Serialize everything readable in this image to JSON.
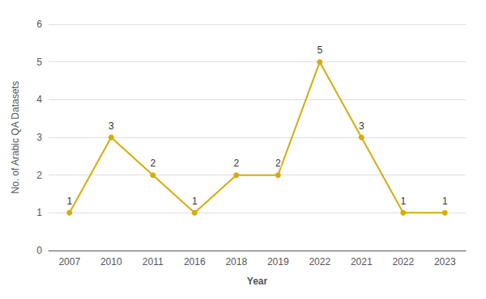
{
  "chart_data": {
    "type": "line",
    "xlabel": "Year",
    "ylabel": "No. of Arabic QA Datasets",
    "categories": [
      "2007",
      "2010",
      "2011",
      "2016",
      "2018",
      "2019",
      "2022",
      "2021",
      "2022",
      "2023"
    ],
    "values": [
      1,
      3,
      2,
      1,
      2,
      2,
      5,
      3,
      1,
      1
    ],
    "color": "#D4AC0D",
    "marker": "circle",
    "ylim": [
      0,
      6
    ],
    "yticks": [
      0,
      1,
      2,
      3,
      4,
      5,
      6
    ],
    "grid": true,
    "data_labels": true
  }
}
